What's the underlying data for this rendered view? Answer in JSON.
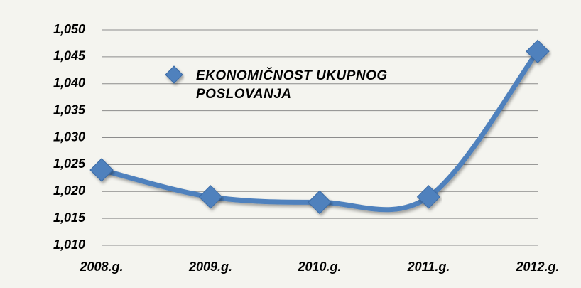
{
  "chart_data": {
    "type": "line",
    "categories": [
      "2008.g.",
      "2009.g.",
      "2010.g.",
      "2011.g.",
      "2012.g."
    ],
    "series": [
      {
        "name": "EKONOMIČNOST UKUPNOG POSLOVANJA",
        "color": "#4f81bd",
        "values": [
          1.024,
          1.019,
          1.018,
          1.019,
          1.046
        ]
      }
    ],
    "ylim": [
      1.01,
      1.05
    ],
    "yticks": [
      {
        "value": 1.01,
        "label": "1,010"
      },
      {
        "value": 1.015,
        "label": "1,015"
      },
      {
        "value": 1.02,
        "label": "1,020"
      },
      {
        "value": 1.025,
        "label": "1,025"
      },
      {
        "value": 1.03,
        "label": "1,030"
      },
      {
        "value": 1.035,
        "label": "1,035"
      },
      {
        "value": 1.04,
        "label": "1,040"
      },
      {
        "value": 1.045,
        "label": "1,045"
      },
      {
        "value": 1.05,
        "label": "1,050"
      }
    ],
    "grid": true,
    "smooth": true,
    "legend": "top-left"
  }
}
